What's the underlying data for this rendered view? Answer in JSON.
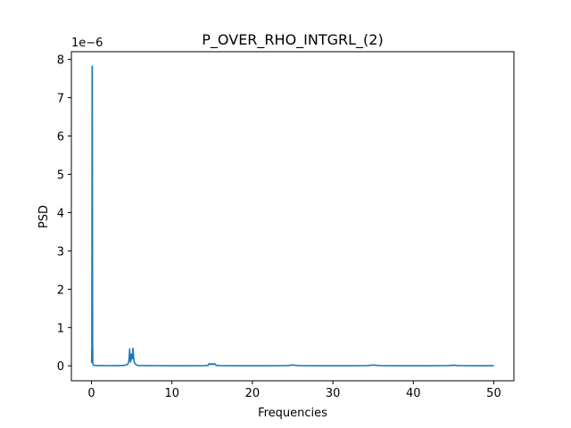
{
  "chart_data": {
    "type": "line",
    "title": "P_OVER_RHO_INTGRL_(2)",
    "xlabel": "Frequencies",
    "ylabel": "PSD",
    "y_offset_text": "1e−6",
    "xlim": [
      -2.5,
      52.5
    ],
    "ylim": [
      -0.39,
      8.2
    ],
    "x_ticks": [
      0,
      10,
      20,
      30,
      40,
      50
    ],
    "x_tick_labels": [
      "0",
      "10",
      "20",
      "30",
      "40",
      "50"
    ],
    "y_ticks": [
      0,
      1,
      2,
      3,
      4,
      5,
      6,
      7,
      8
    ],
    "y_tick_labels": [
      "0",
      "1",
      "2",
      "3",
      "4",
      "5",
      "6",
      "7",
      "8"
    ],
    "grid": false,
    "series": [
      {
        "color": "#1f77b4",
        "x": [
          0,
          0.02,
          0.04,
          0.06,
          0.08,
          0.1,
          0.12,
          0.14,
          0.16,
          0.18,
          0.2,
          0.25,
          0.3,
          0.4,
          0.6,
          1.0,
          1.5,
          2.0,
          2.5,
          3.0,
          3.5,
          4.0,
          4.3,
          4.5,
          4.6,
          4.65,
          4.7,
          4.75,
          4.8,
          4.85,
          4.9,
          4.95,
          5.0,
          5.05,
          5.1,
          5.15,
          5.2,
          5.25,
          5.3,
          5.35,
          5.4,
          5.5,
          5.6,
          5.8,
          6.0,
          7.0,
          8.0,
          10.0,
          12.0,
          14.0,
          14.5,
          14.6,
          14.7,
          14.8,
          14.9,
          15.0,
          15.1,
          15.2,
          15.3,
          15.4,
          15.5,
          16.0,
          18.0,
          20.0,
          22.0,
          24.0,
          24.6,
          24.8,
          25.0,
          25.2,
          25.4,
          26.0,
          28.0,
          30.0,
          32.0,
          34.0,
          34.6,
          34.8,
          35.0,
          35.2,
          35.4,
          36.0,
          38.0,
          40.0,
          42.0,
          44.0,
          44.6,
          44.8,
          45.0,
          45.2,
          45.4,
          46.0,
          48.0,
          50.0
        ],
        "y": [
          0.08,
          0.12,
          0.5,
          3.5,
          7.82,
          7.8,
          4.0,
          0.6,
          0.1,
          0.05,
          0.03,
          0.02,
          0.015,
          0.01,
          0.008,
          0.005,
          0.004,
          0.003,
          0.003,
          0.004,
          0.005,
          0.01,
          0.02,
          0.04,
          0.08,
          0.15,
          0.25,
          0.44,
          0.2,
          0.1,
          0.15,
          0.3,
          0.24,
          0.18,
          0.28,
          0.46,
          0.3,
          0.2,
          0.12,
          0.08,
          0.06,
          0.04,
          0.02,
          0.01,
          0.006,
          0.004,
          0.003,
          0.002,
          0.002,
          0.003,
          0.01,
          0.05,
          0.06,
          0.03,
          0.05,
          0.04,
          0.06,
          0.03,
          0.05,
          0.04,
          0.01,
          0.003,
          0.002,
          0.002,
          0.002,
          0.003,
          0.01,
          0.02,
          0.015,
          0.02,
          0.01,
          0.003,
          0.002,
          0.002,
          0.002,
          0.003,
          0.01,
          0.02,
          0.015,
          0.02,
          0.01,
          0.003,
          0.002,
          0.002,
          0.002,
          0.003,
          0.008,
          0.015,
          0.012,
          0.015,
          0.008,
          0.003,
          0.002,
          0.002
        ]
      }
    ]
  }
}
